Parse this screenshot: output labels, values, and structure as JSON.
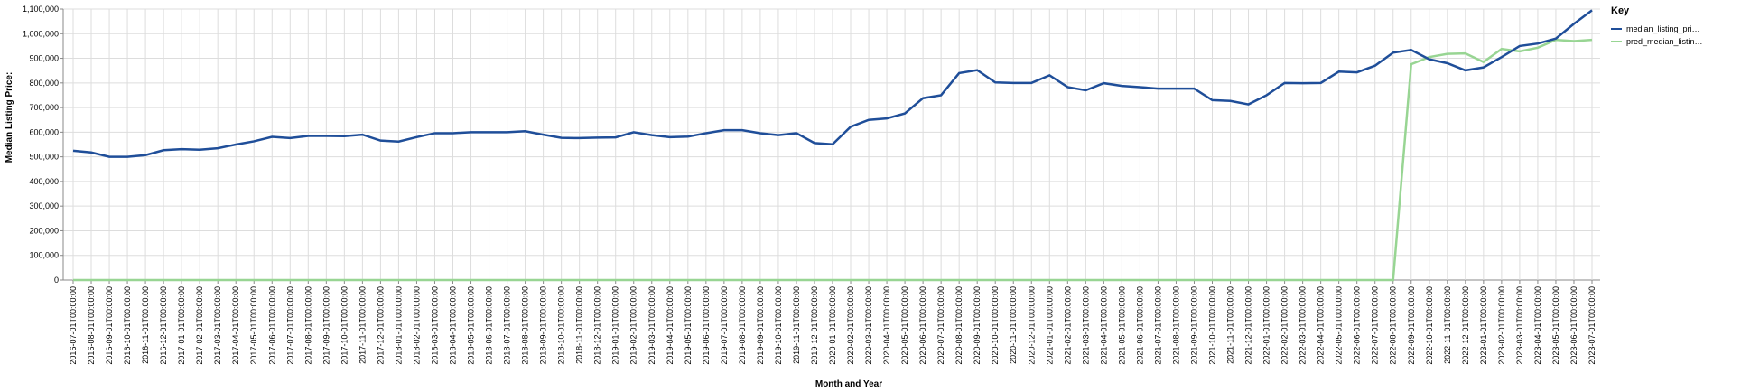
{
  "chart_data": {
    "type": "line",
    "x_label": "Month and Year",
    "y_label": "Median Listing Price:",
    "legend_title": "Key",
    "categories": [
      "2016-07-01T00:00:00",
      "2016-08-01T00:00:00",
      "2016-09-01T00:00:00",
      "2016-10-01T00:00:00",
      "2016-11-01T00:00:00",
      "2016-12-01T00:00:00",
      "2017-01-01T00:00:00",
      "2017-02-01T00:00:00",
      "2017-03-01T00:00:00",
      "2017-04-01T00:00:00",
      "2017-05-01T00:00:00",
      "2017-06-01T00:00:00",
      "2017-07-01T00:00:00",
      "2017-08-01T00:00:00",
      "2017-09-01T00:00:00",
      "2017-10-01T00:00:00",
      "2017-11-01T00:00:00",
      "2017-12-01T00:00:00",
      "2018-01-01T00:00:00",
      "2018-02-01T00:00:00",
      "2018-03-01T00:00:00",
      "2018-04-01T00:00:00",
      "2018-05-01T00:00:00",
      "2018-06-01T00:00:00",
      "2018-07-01T00:00:00",
      "2018-08-01T00:00:00",
      "2018-09-01T00:00:00",
      "2018-10-01T00:00:00",
      "2018-11-01T00:00:00",
      "2018-12-01T00:00:00",
      "2019-01-01T00:00:00",
      "2019-02-01T00:00:00",
      "2019-03-01T00:00:00",
      "2019-04-01T00:00:00",
      "2019-05-01T00:00:00",
      "2019-06-01T00:00:00",
      "2019-07-01T00:00:00",
      "2019-08-01T00:00:00",
      "2019-09-01T00:00:00",
      "2019-10-01T00:00:00",
      "2019-11-01T00:00:00",
      "2019-12-01T00:00:00",
      "2020-01-01T00:00:00",
      "2020-02-01T00:00:00",
      "2020-03-01T00:00:00",
      "2020-04-01T00:00:00",
      "2020-05-01T00:00:00",
      "2020-06-01T00:00:00",
      "2020-07-01T00:00:00",
      "2020-08-01T00:00:00",
      "2020-09-01T00:00:00",
      "2020-10-01T00:00:00",
      "2020-11-01T00:00:00",
      "2020-12-01T00:00:00",
      "2021-01-01T00:00:00",
      "2021-02-01T00:00:00",
      "2021-03-01T00:00:00",
      "2021-04-01T00:00:00",
      "2021-05-01T00:00:00",
      "2021-06-01T00:00:00",
      "2021-07-01T00:00:00",
      "2021-08-01T00:00:00",
      "2021-09-01T00:00:00",
      "2021-10-01T00:00:00",
      "2021-11-01T00:00:00",
      "2021-12-01T00:00:00",
      "2022-01-01T00:00:00",
      "2022-02-01T00:00:00",
      "2022-03-01T00:00:00",
      "2022-04-01T00:00:00",
      "2022-05-01T00:00:00",
      "2022-06-01T00:00:00",
      "2022-07-01T00:00:00",
      "2022-08-01T00:00:00",
      "2022-09-01T00:00:00",
      "2022-10-01T00:00:00",
      "2022-11-01T00:00:00",
      "2022-12-01T00:00:00",
      "2023-01-01T00:00:00",
      "2023-02-01T00:00:00",
      "2023-03-01T00:00:00",
      "2023-04-01T00:00:00",
      "2023-05-01T00:00:00",
      "2023-06-01T00:00:00",
      "2023-07-01T00:00:00"
    ],
    "series": [
      {
        "name": "median_listing_pri…",
        "color": "#1f4e99",
        "values": [
          525000,
          518000,
          500000,
          500000,
          507000,
          527000,
          531000,
          529000,
          535000,
          550000,
          563000,
          581000,
          576000,
          585000,
          585000,
          584000,
          590000,
          566000,
          562000,
          580000,
          596000,
          596000,
          600000,
          600000,
          600000,
          604000,
          590000,
          577000,
          576000,
          578000,
          579000,
          600000,
          588000,
          580000,
          582000,
          596000,
          608000,
          608000,
          596000,
          588000,
          596000,
          556000,
          551000,
          622000,
          650000,
          656000,
          676000,
          738000,
          750000,
          840000,
          852000,
          802000,
          800000,
          800000,
          831000,
          783000,
          770000,
          799000,
          788000,
          783000,
          777000,
          777000,
          777000,
          730000,
          727000,
          713000,
          750000,
          800000,
          799000,
          800000,
          846000,
          843000,
          870000,
          923000,
          934000,
          896000,
          880000,
          851000,
          863000,
          905000,
          950000,
          960000,
          980000,
          1040000,
          1095000
        ]
      },
      {
        "name": "pred_median_listin…",
        "color": "#98d593",
        "values": [
          0,
          0,
          0,
          0,
          0,
          0,
          0,
          0,
          0,
          0,
          0,
          0,
          0,
          0,
          0,
          0,
          0,
          0,
          0,
          0,
          0,
          0,
          0,
          0,
          0,
          0,
          0,
          0,
          0,
          0,
          0,
          0,
          0,
          0,
          0,
          0,
          0,
          0,
          0,
          0,
          0,
          0,
          0,
          0,
          0,
          0,
          0,
          0,
          0,
          0,
          0,
          0,
          0,
          0,
          0,
          0,
          0,
          0,
          0,
          0,
          0,
          0,
          0,
          0,
          0,
          0,
          0,
          0,
          0,
          0,
          0,
          0,
          0,
          0,
          876000,
          905000,
          918000,
          920000,
          885000,
          938000,
          928000,
          943000,
          975000,
          970000,
          975000
        ]
      }
    ],
    "ylim": [
      0,
      1100000
    ],
    "yticks": [
      0,
      {
        "value": 100000,
        "label": "100,000"
      },
      {
        "value": 200000,
        "label": "200,000"
      },
      {
        "value": 300000,
        "label": "300,000"
      },
      {
        "value": 400000,
        "label": "400,000"
      },
      {
        "value": 500000,
        "label": "500,000"
      },
      {
        "value": 600000,
        "label": "600,000"
      },
      {
        "value": 700000,
        "label": "700,000"
      },
      {
        "value": 800000,
        "label": "800,000"
      },
      {
        "value": 900000,
        "label": "900,000"
      },
      {
        "value": 1000000,
        "label": "1,000,000"
      },
      {
        "value": 1100000,
        "label": "1,100,000"
      }
    ],
    "grid": true,
    "legend": "right"
  }
}
